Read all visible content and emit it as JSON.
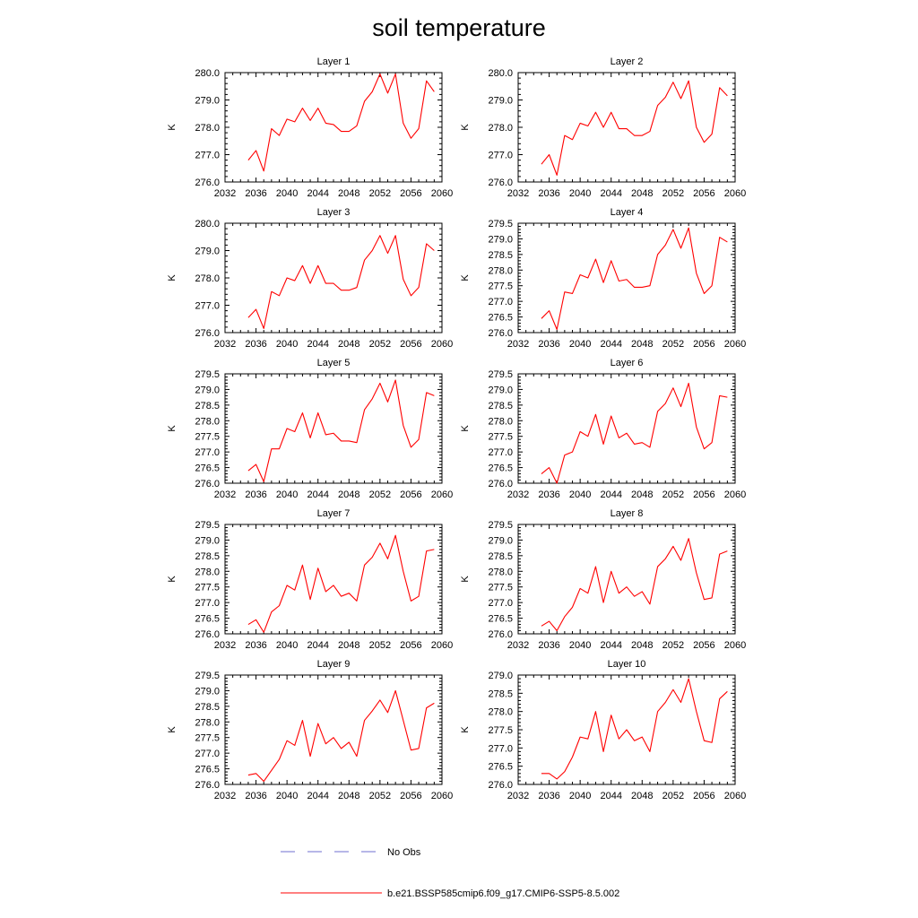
{
  "figure": {
    "title": "soil temperature",
    "legend": [
      {
        "label": "No Obs",
        "color": "#6f6fd0",
        "style": "dashed"
      },
      {
        "label": "b.e21.BSSP585cmip6.f09_g17.CMIP6-SSP5-8.5.002",
        "color": "#ff0000",
        "style": "solid"
      }
    ]
  },
  "chart_data": [
    {
      "type": "line",
      "title": "Layer 1",
      "ylabel": "K",
      "xlim": [
        2032,
        2060
      ],
      "ylim": [
        276.0,
        280.0
      ],
      "xticks": [
        "2032",
        "2036",
        "2040",
        "2044",
        "2048",
        "2052",
        "2056",
        "2060"
      ],
      "yticks": [
        "276.0",
        "277.0",
        "278.0",
        "279.0",
        "280.0"
      ],
      "series": [
        {
          "color": "#ff0000",
          "x": [
            2035,
            2036,
            2037,
            2038,
            2039,
            2040,
            2041,
            2042,
            2043,
            2044,
            2045,
            2046,
            2047,
            2048,
            2049,
            2050,
            2051,
            2052,
            2053,
            2054,
            2055,
            2056,
            2057,
            2058,
            2059
          ],
          "values": [
            276.8,
            277.15,
            276.4,
            277.95,
            277.7,
            278.3,
            278.2,
            278.7,
            278.25,
            278.7,
            278.15,
            278.1,
            277.85,
            277.85,
            278.05,
            278.95,
            279.3,
            279.95,
            279.25,
            279.95,
            278.15,
            277.6,
            277.95,
            279.7,
            279.3
          ]
        }
      ]
    },
    {
      "type": "line",
      "title": "Layer 2",
      "ylabel": "K",
      "xlim": [
        2032,
        2060
      ],
      "ylim": [
        276.0,
        280.0
      ],
      "xticks": [
        "2032",
        "2036",
        "2040",
        "2044",
        "2048",
        "2052",
        "2056",
        "2060"
      ],
      "yticks": [
        "276.0",
        "277.0",
        "278.0",
        "279.0",
        "280.0"
      ],
      "series": [
        {
          "color": "#ff0000",
          "x": [
            2035,
            2036,
            2037,
            2038,
            2039,
            2040,
            2041,
            2042,
            2043,
            2044,
            2045,
            2046,
            2047,
            2048,
            2049,
            2050,
            2051,
            2052,
            2053,
            2054,
            2055,
            2056,
            2057,
            2058,
            2059
          ],
          "values": [
            276.65,
            277.0,
            276.25,
            277.7,
            277.55,
            278.15,
            278.05,
            278.55,
            278.0,
            278.55,
            277.95,
            277.95,
            277.7,
            277.7,
            277.85,
            278.8,
            279.1,
            279.65,
            279.05,
            279.7,
            278.0,
            277.45,
            277.75,
            279.45,
            279.15
          ]
        }
      ]
    },
    {
      "type": "line",
      "title": "Layer 3",
      "ylabel": "K",
      "xlim": [
        2032,
        2060
      ],
      "ylim": [
        276.0,
        280.0
      ],
      "xticks": [
        "2032",
        "2036",
        "2040",
        "2044",
        "2048",
        "2052",
        "2056",
        "2060"
      ],
      "yticks": [
        "276.0",
        "277.0",
        "278.0",
        "279.0",
        "280.0"
      ],
      "series": [
        {
          "color": "#ff0000",
          "x": [
            2035,
            2036,
            2037,
            2038,
            2039,
            2040,
            2041,
            2042,
            2043,
            2044,
            2045,
            2046,
            2047,
            2048,
            2049,
            2050,
            2051,
            2052,
            2053,
            2054,
            2055,
            2056,
            2057,
            2058,
            2059
          ],
          "values": [
            276.55,
            276.85,
            276.15,
            277.5,
            277.35,
            278.0,
            277.9,
            278.45,
            277.8,
            278.45,
            277.8,
            277.8,
            277.55,
            277.55,
            277.65,
            278.65,
            279.0,
            279.55,
            278.9,
            279.55,
            277.95,
            277.35,
            277.65,
            279.25,
            279.0
          ]
        }
      ]
    },
    {
      "type": "line",
      "title": "Layer 4",
      "ylabel": "K",
      "xlim": [
        2032,
        2060
      ],
      "ylim": [
        276.0,
        279.5
      ],
      "xticks": [
        "2032",
        "2036",
        "2040",
        "2044",
        "2048",
        "2052",
        "2056",
        "2060"
      ],
      "yticks": [
        "276.0",
        "276.5",
        "277.0",
        "277.5",
        "278.0",
        "278.5",
        "279.0",
        "279.5"
      ],
      "series": [
        {
          "color": "#ff0000",
          "x": [
            2035,
            2036,
            2037,
            2038,
            2039,
            2040,
            2041,
            2042,
            2043,
            2044,
            2045,
            2046,
            2047,
            2048,
            2049,
            2050,
            2051,
            2052,
            2053,
            2054,
            2055,
            2056,
            2057,
            2058,
            2059
          ],
          "values": [
            276.45,
            276.7,
            276.1,
            277.3,
            277.25,
            277.85,
            277.75,
            278.35,
            277.6,
            278.3,
            277.65,
            277.7,
            277.45,
            277.45,
            277.5,
            278.5,
            278.8,
            279.3,
            278.7,
            279.35,
            277.9,
            277.25,
            277.5,
            279.05,
            278.9
          ]
        }
      ]
    },
    {
      "type": "line",
      "title": "Layer 5",
      "ylabel": "K",
      "xlim": [
        2032,
        2060
      ],
      "ylim": [
        276.0,
        279.5
      ],
      "xticks": [
        "2032",
        "2036",
        "2040",
        "2044",
        "2048",
        "2052",
        "2056",
        "2060"
      ],
      "yticks": [
        "276.0",
        "276.5",
        "277.0",
        "277.5",
        "278.0",
        "278.5",
        "279.0",
        "279.5"
      ],
      "series": [
        {
          "color": "#ff0000",
          "x": [
            2035,
            2036,
            2037,
            2038,
            2039,
            2040,
            2041,
            2042,
            2043,
            2044,
            2045,
            2046,
            2047,
            2048,
            2049,
            2050,
            2051,
            2052,
            2053,
            2054,
            2055,
            2056,
            2057,
            2058,
            2059
          ],
          "values": [
            276.4,
            276.6,
            276.05,
            277.1,
            277.1,
            277.75,
            277.65,
            278.25,
            277.45,
            278.25,
            277.55,
            277.6,
            277.35,
            277.35,
            277.3,
            278.35,
            278.7,
            279.2,
            278.6,
            279.3,
            277.85,
            277.15,
            277.4,
            278.9,
            278.8
          ]
        }
      ]
    },
    {
      "type": "line",
      "title": "Layer 6",
      "ylabel": "K",
      "xlim": [
        2032,
        2060
      ],
      "ylim": [
        276.0,
        279.5
      ],
      "xticks": [
        "2032",
        "2036",
        "2040",
        "2044",
        "2048",
        "2052",
        "2056",
        "2060"
      ],
      "yticks": [
        "276.0",
        "276.5",
        "277.0",
        "277.5",
        "278.0",
        "278.5",
        "279.0",
        "279.5"
      ],
      "series": [
        {
          "color": "#ff0000",
          "x": [
            2035,
            2036,
            2037,
            2038,
            2039,
            2040,
            2041,
            2042,
            2043,
            2044,
            2045,
            2046,
            2047,
            2048,
            2049,
            2050,
            2051,
            2052,
            2053,
            2054,
            2055,
            2056,
            2057,
            2058,
            2059
          ],
          "values": [
            276.3,
            276.5,
            276.0,
            276.9,
            277.0,
            277.65,
            277.5,
            278.2,
            277.25,
            278.15,
            277.45,
            277.6,
            277.25,
            277.3,
            277.15,
            278.3,
            278.55,
            279.05,
            278.45,
            279.2,
            277.8,
            277.1,
            277.3,
            278.8,
            278.75
          ]
        }
      ]
    },
    {
      "type": "line",
      "title": "Layer 7",
      "ylabel": "K",
      "xlim": [
        2032,
        2060
      ],
      "ylim": [
        276.0,
        279.5
      ],
      "xticks": [
        "2032",
        "2036",
        "2040",
        "2044",
        "2048",
        "2052",
        "2056",
        "2060"
      ],
      "yticks": [
        "276.0",
        "276.5",
        "277.0",
        "277.5",
        "278.0",
        "278.5",
        "279.0",
        "279.5"
      ],
      "series": [
        {
          "color": "#ff0000",
          "x": [
            2035,
            2036,
            2037,
            2038,
            2039,
            2040,
            2041,
            2042,
            2043,
            2044,
            2045,
            2046,
            2047,
            2048,
            2049,
            2050,
            2051,
            2052,
            2053,
            2054,
            2055,
            2056,
            2057,
            2058,
            2059
          ],
          "values": [
            276.3,
            276.45,
            276.05,
            276.7,
            276.9,
            277.55,
            277.4,
            278.2,
            277.1,
            278.1,
            277.35,
            277.55,
            277.2,
            277.3,
            277.05,
            278.2,
            278.45,
            278.9,
            278.4,
            279.15,
            278.0,
            277.05,
            277.2,
            278.65,
            278.7
          ]
        }
      ]
    },
    {
      "type": "line",
      "title": "Layer 8",
      "ylabel": "K",
      "xlim": [
        2032,
        2060
      ],
      "ylim": [
        276.0,
        279.5
      ],
      "xticks": [
        "2032",
        "2036",
        "2040",
        "2044",
        "2048",
        "2052",
        "2056",
        "2060"
      ],
      "yticks": [
        "276.0",
        "276.5",
        "277.0",
        "277.5",
        "278.0",
        "278.5",
        "279.0",
        "279.5"
      ],
      "series": [
        {
          "color": "#ff0000",
          "x": [
            2035,
            2036,
            2037,
            2038,
            2039,
            2040,
            2041,
            2042,
            2043,
            2044,
            2045,
            2046,
            2047,
            2048,
            2049,
            2050,
            2051,
            2052,
            2053,
            2054,
            2055,
            2056,
            2057,
            2058,
            2059
          ],
          "values": [
            276.25,
            276.4,
            276.1,
            276.55,
            276.85,
            277.45,
            277.3,
            278.15,
            277.0,
            278.0,
            277.3,
            277.5,
            277.2,
            277.35,
            276.95,
            278.15,
            278.4,
            278.8,
            278.35,
            279.05,
            277.95,
            277.1,
            277.15,
            278.55,
            278.65
          ]
        }
      ]
    },
    {
      "type": "line",
      "title": "Layer 9",
      "ylabel": "K",
      "xlim": [
        2032,
        2060
      ],
      "ylim": [
        276.0,
        279.5
      ],
      "xticks": [
        "2032",
        "2036",
        "2040",
        "2044",
        "2048",
        "2052",
        "2056",
        "2060"
      ],
      "yticks": [
        "276.0",
        "276.5",
        "277.0",
        "277.5",
        "278.0",
        "278.5",
        "279.0",
        "279.5"
      ],
      "series": [
        {
          "color": "#ff0000",
          "x": [
            2035,
            2036,
            2037,
            2038,
            2039,
            2040,
            2041,
            2042,
            2043,
            2044,
            2045,
            2046,
            2047,
            2048,
            2049,
            2050,
            2051,
            2052,
            2053,
            2054,
            2055,
            2056,
            2057,
            2058,
            2059
          ],
          "values": [
            276.3,
            276.35,
            276.1,
            276.45,
            276.8,
            277.4,
            277.25,
            278.05,
            276.9,
            277.95,
            277.3,
            277.5,
            277.15,
            277.35,
            276.9,
            278.05,
            278.35,
            278.7,
            278.3,
            279.0,
            278.05,
            277.1,
            277.15,
            278.45,
            278.6
          ]
        }
      ]
    },
    {
      "type": "line",
      "title": "Layer 10",
      "ylabel": "K",
      "xlim": [
        2032,
        2060
      ],
      "ylim": [
        276.0,
        279.0
      ],
      "xticks": [
        "2032",
        "2036",
        "2040",
        "2044",
        "2048",
        "2052",
        "2056",
        "2060"
      ],
      "yticks": [
        "276.0",
        "276.5",
        "277.0",
        "277.5",
        "278.0",
        "278.5",
        "279.0"
      ],
      "series": [
        {
          "color": "#ff0000",
          "x": [
            2035,
            2036,
            2037,
            2038,
            2039,
            2040,
            2041,
            2042,
            2043,
            2044,
            2045,
            2046,
            2047,
            2048,
            2049,
            2050,
            2051,
            2052,
            2053,
            2054,
            2055,
            2056,
            2057,
            2058,
            2059
          ],
          "values": [
            276.3,
            276.3,
            276.15,
            276.35,
            276.75,
            277.3,
            277.25,
            278.0,
            276.9,
            277.9,
            277.25,
            277.5,
            277.2,
            277.3,
            276.9,
            278.0,
            278.25,
            278.6,
            278.25,
            278.9,
            278.0,
            277.2,
            277.15,
            278.35,
            278.55
          ]
        }
      ]
    }
  ]
}
